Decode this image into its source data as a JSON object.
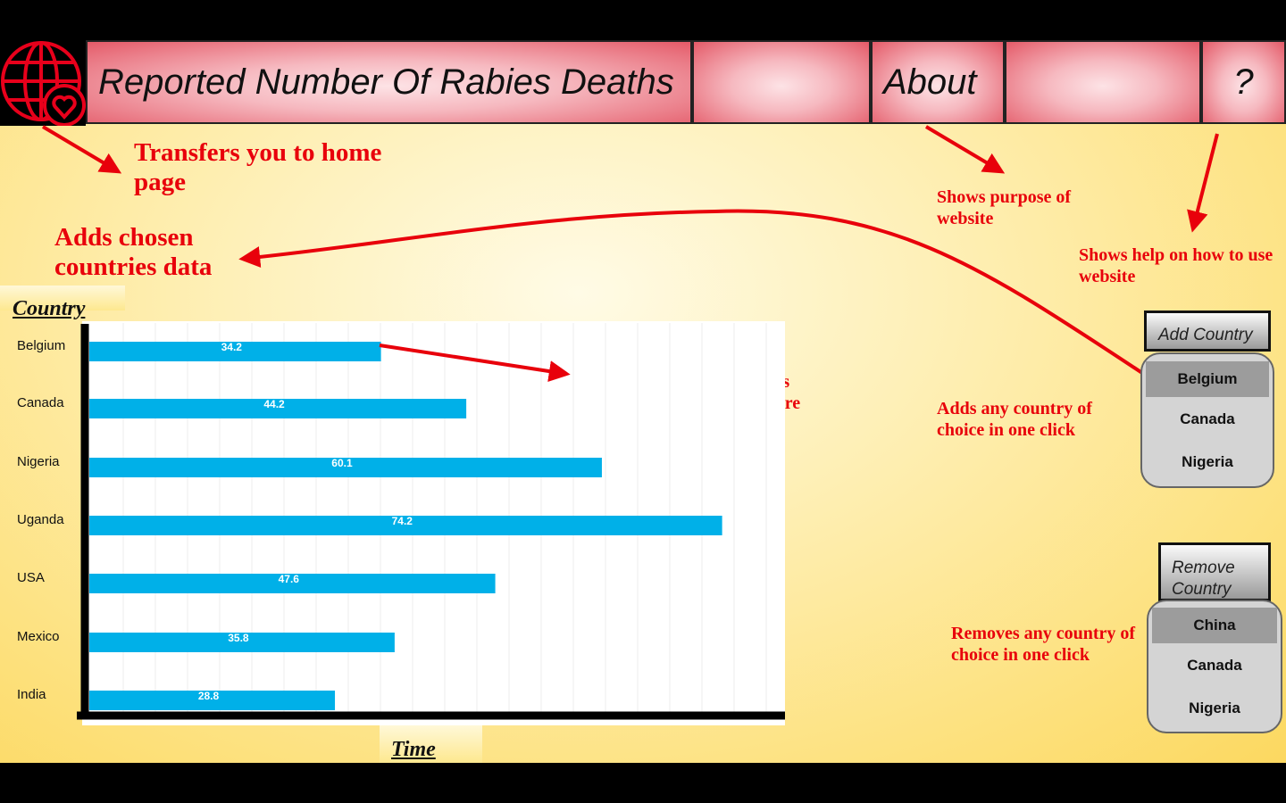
{
  "header": {
    "title": "Reported Number Of Rabies Deaths",
    "about": "About",
    "help": "?"
  },
  "annotations": {
    "home": "Transfers you to home page",
    "adds_data": "Adds chosen countries data",
    "about": "Shows purpose of website",
    "help": "Shows help on how to use website",
    "chart": "Displays data of country as well as lets the user compare",
    "add": "Adds any country of choice in one click",
    "remove": "Removes any country of choice in one click"
  },
  "controls": {
    "add_button": "Add Country",
    "add_options": [
      "Belgium",
      "Canada",
      "Nigeria"
    ],
    "remove_button": "Remove Country",
    "remove_options": [
      "China",
      "Canada",
      "Nigeria"
    ]
  },
  "chart_data": {
    "type": "bar",
    "orientation": "horizontal",
    "x_label": "Time",
    "y_label": "Country",
    "categories": [
      "Belgium",
      "Canada",
      "Nigeria",
      "Uganda",
      "USA",
      "Mexico",
      "India"
    ],
    "values": [
      34.2,
      44.2,
      60.1,
      74.2,
      47.6,
      35.8,
      28.8
    ],
    "color": "#00b0e8",
    "grid": true
  }
}
